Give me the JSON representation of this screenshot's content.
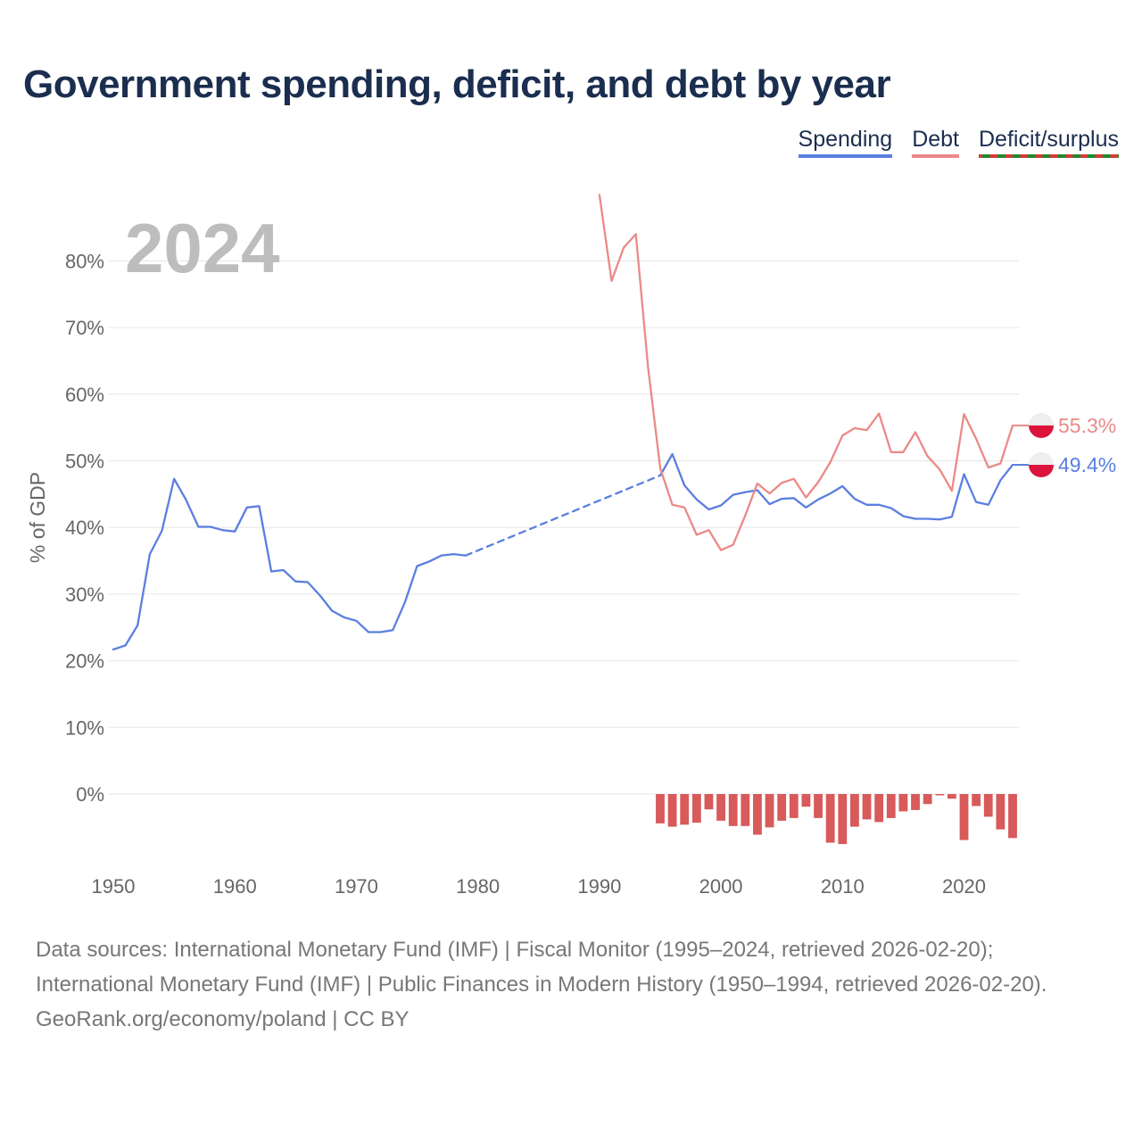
{
  "title": "Government spending, deficit, and debt by year",
  "legend": {
    "spending": "Spending",
    "debt": "Debt",
    "deficit": "Deficit/surplus"
  },
  "colors": {
    "spending": "#5b7fe0",
    "debt": "#ea8a88",
    "deficit_negative": "#d85a5a",
    "deficit_positive": "#1f8a2c",
    "title": "#1b2e4f"
  },
  "footer": {
    "sources": "Data sources: International Monetary Fund (IMF) | Fiscal Monitor (1995–2024, retrieved 2026-02-20); International Monetary Fund (IMF) | Public Finances in Modern History (1950–1994, retrieved 2026-02-20).",
    "credit": "GeoRank.org/economy/poland | CC BY"
  },
  "chart_data": {
    "type": "line",
    "year_label": "2024",
    "ylabel": "% of GDP",
    "xlim": [
      1950,
      2024
    ],
    "ylim": [
      -10,
      90
    ],
    "x_ticks": [
      1950,
      1960,
      1970,
      1980,
      1990,
      2000,
      2010,
      2020
    ],
    "y_ticks": [
      0,
      10,
      20,
      30,
      40,
      50,
      60,
      70,
      80
    ],
    "y_tick_labels": [
      "0%",
      "10%",
      "20%",
      "30%",
      "40%",
      "50%",
      "60%",
      "70%",
      "80%"
    ],
    "series": [
      {
        "name": "Spending",
        "x": [
          1950,
          1951,
          1952,
          1953,
          1954,
          1955,
          1956,
          1957,
          1958,
          1959,
          1960,
          1961,
          1962,
          1963,
          1964,
          1965,
          1966,
          1967,
          1968,
          1969,
          1970,
          1971,
          1972,
          1973,
          1974,
          1975,
          1976,
          1977,
          1978,
          1979
        ],
        "values": [
          21.7,
          22.3,
          25.3,
          36.0,
          39.5,
          47.3,
          44.1,
          40.1,
          40.1,
          39.6,
          39.4,
          43.0,
          43.2,
          33.4,
          33.6,
          31.9,
          31.8,
          29.8,
          27.5,
          26.5,
          26.0,
          24.3,
          24.3,
          24.6,
          28.8,
          34.2,
          34.9,
          35.8,
          36.0,
          35.8
        ]
      },
      {
        "name": "Spending (interpolated gap)",
        "dashed": true,
        "x": [
          1979,
          1995
        ],
        "values": [
          35.8,
          47.8
        ]
      },
      {
        "name": "Spending",
        "x": [
          1995,
          1996,
          1997,
          1998,
          1999,
          2000,
          2001,
          2002,
          2003,
          2004,
          2005,
          2006,
          2007,
          2008,
          2009,
          2010,
          2011,
          2012,
          2013,
          2014,
          2015,
          2016,
          2017,
          2018,
          2019,
          2020,
          2021,
          2022,
          2023,
          2024
        ],
        "values": [
          47.8,
          51.0,
          46.3,
          44.2,
          42.7,
          43.3,
          44.9,
          45.3,
          45.6,
          43.5,
          44.3,
          44.4,
          43.0,
          44.2,
          45.1,
          46.2,
          44.3,
          43.4,
          43.4,
          42.9,
          41.7,
          41.3,
          41.3,
          41.2,
          41.6,
          48.0,
          43.8,
          43.4,
          47.1,
          49.4
        ]
      },
      {
        "name": "Debt",
        "x": [
          1990,
          1991,
          1992,
          1993,
          1994,
          1995,
          1996,
          1997,
          1998,
          1999,
          2000,
          2001,
          2002,
          2003,
          2004,
          2005,
          2006,
          2007,
          2008,
          2009,
          2010,
          2011,
          2012,
          2013,
          2014,
          2015,
          2016,
          2017,
          2018,
          2019,
          2020,
          2021,
          2022,
          2023,
          2024
        ],
        "values": [
          89.9,
          77.0,
          82.0,
          84.0,
          64.0,
          48.9,
          43.4,
          43.0,
          38.9,
          39.6,
          36.6,
          37.4,
          41.8,
          46.6,
          45.1,
          46.7,
          47.3,
          44.5,
          46.8,
          49.8,
          53.8,
          54.9,
          54.6,
          57.1,
          51.3,
          51.3,
          54.3,
          50.7,
          48.7,
          45.5,
          57.0,
          53.3,
          49.0,
          49.6,
          55.3
        ]
      }
    ],
    "deficit_surplus": {
      "name": "Deficit/surplus",
      "x": [
        1995,
        1996,
        1997,
        1998,
        1999,
        2000,
        2001,
        2002,
        2003,
        2004,
        2005,
        2006,
        2007,
        2008,
        2009,
        2010,
        2011,
        2012,
        2013,
        2014,
        2015,
        2016,
        2017,
        2018,
        2019,
        2020,
        2021,
        2022,
        2023,
        2024
      ],
      "values": [
        -4.4,
        -4.9,
        -4.6,
        -4.3,
        -2.3,
        -4.0,
        -4.8,
        -4.8,
        -6.1,
        -5.0,
        -4.0,
        -3.6,
        -1.9,
        -3.6,
        -7.3,
        -7.5,
        -4.9,
        -3.8,
        -4.2,
        -3.6,
        -2.6,
        -2.4,
        -1.5,
        -0.2,
        -0.7,
        -6.9,
        -1.8,
        -3.4,
        -5.3,
        -6.6
      ]
    },
    "end_labels": {
      "spending": "49.4%",
      "debt": "55.3%"
    }
  }
}
